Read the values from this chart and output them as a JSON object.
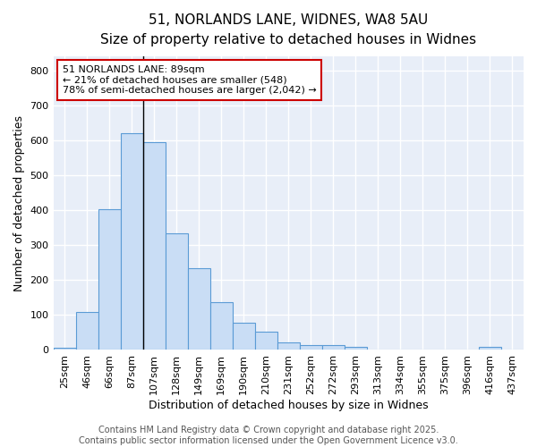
{
  "title1": "51, NORLANDS LANE, WIDNES, WA8 5AU",
  "title2": "Size of property relative to detached houses in Widnes",
  "xlabel": "Distribution of detached houses by size in Widnes",
  "ylabel": "Number of detached properties",
  "categories": [
    "25sqm",
    "46sqm",
    "66sqm",
    "87sqm",
    "107sqm",
    "128sqm",
    "149sqm",
    "169sqm",
    "190sqm",
    "210sqm",
    "231sqm",
    "252sqm",
    "272sqm",
    "293sqm",
    "313sqm",
    "334sqm",
    "355sqm",
    "375sqm",
    "396sqm",
    "416sqm",
    "437sqm"
  ],
  "values": [
    7,
    108,
    403,
    620,
    595,
    333,
    235,
    137,
    78,
    52,
    22,
    14,
    14,
    8,
    0,
    0,
    0,
    0,
    0,
    8,
    0
  ],
  "bar_color": "#c9ddf5",
  "bar_edge_color": "#5b9bd5",
  "plot_bg_color": "#e8eef8",
  "fig_bg_color": "#ffffff",
  "grid_color": "#ffffff",
  "annotation_text": "51 NORLANDS LANE: 89sqm\n← 21% of detached houses are smaller (548)\n78% of semi-detached houses are larger (2,042) →",
  "annotation_box_color": "#ffffff",
  "annotation_border_color": "#cc0000",
  "vline_x_index": 3.5,
  "ylim": [
    0,
    840
  ],
  "yticks": [
    0,
    100,
    200,
    300,
    400,
    500,
    600,
    700,
    800
  ],
  "footer_text": "Contains HM Land Registry data © Crown copyright and database right 2025.\nContains public sector information licensed under the Open Government Licence v3.0.",
  "title_fontsize": 11,
  "subtitle_fontsize": 10,
  "axis_label_fontsize": 9,
  "tick_fontsize": 8,
  "annotation_fontsize": 8,
  "footer_fontsize": 7
}
